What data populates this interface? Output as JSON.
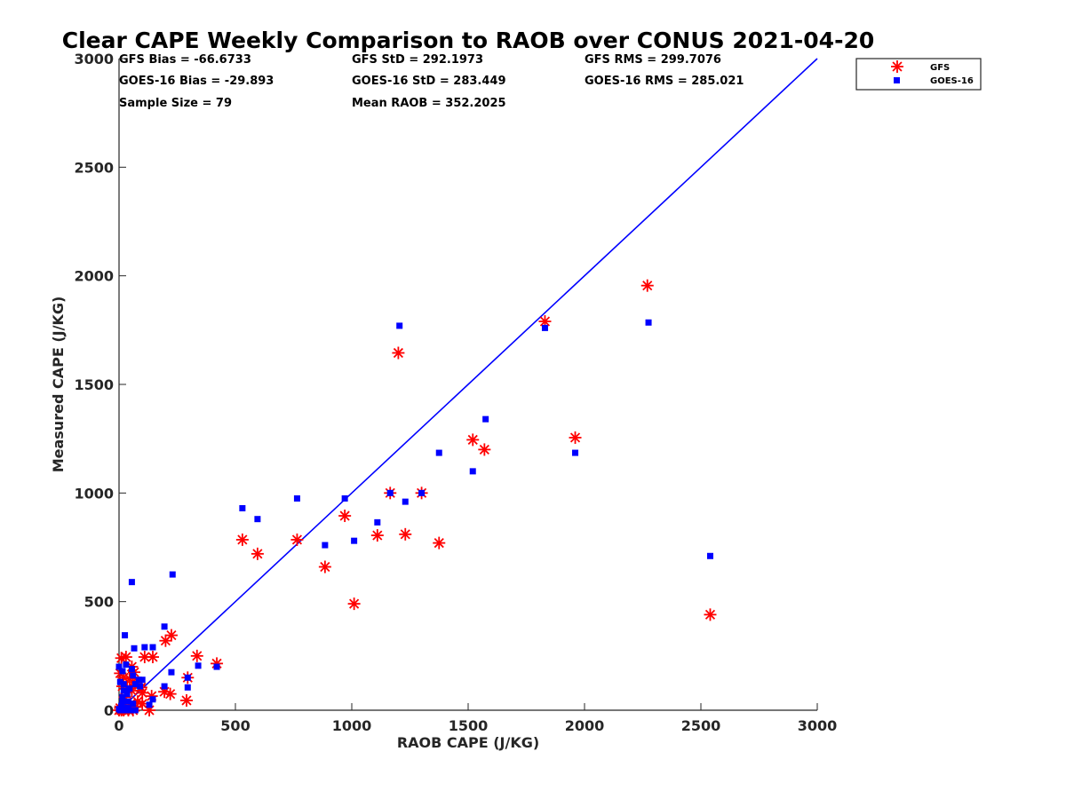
{
  "chart_data": {
    "type": "scatter",
    "title": "Clear CAPE Weekly Comparison to RAOB over CONUS 2021-04-20",
    "xlabel": "RAOB CAPE (J/KG)",
    "ylabel": "Measured CAPE (J/KG)",
    "xlim": [
      0,
      3000
    ],
    "ylim": [
      0,
      3000
    ],
    "xticks": [
      0,
      500,
      1000,
      1500,
      2000,
      2500,
      3000
    ],
    "yticks": [
      0,
      500,
      1000,
      1500,
      2000,
      2500,
      3000
    ],
    "xtick_labels": [
      "0",
      "500",
      "1000",
      "1500",
      "2000",
      "2500",
      "3000"
    ],
    "ytick_labels": [
      "0",
      "500",
      "1000",
      "1500",
      "2000",
      "2500",
      "3000"
    ],
    "legend_position": "top-right (outside axes)",
    "grid": false,
    "reference_line": {
      "name": "1:1 line",
      "x": [
        0,
        3000
      ],
      "y": [
        0,
        3000
      ],
      "color": "#0000ff"
    },
    "stats": [
      [
        "GFS Bias = -66.6733",
        "GFS StD = 292.1973",
        "GFS RMS = 299.7076"
      ],
      [
        "GOES-16 Bias = -29.893",
        "GOES-16 StD = 283.449",
        "GOES-16 RMS = 285.021"
      ],
      [
        "Sample Size = 79",
        "Mean RAOB = 352.2025",
        ""
      ]
    ],
    "series": [
      {
        "name": "GFS",
        "marker": "asterisk",
        "color": "#ff0000",
        "points": [
          [
            2270,
            1955
          ],
          [
            1830,
            1790
          ],
          [
            1200,
            1645
          ],
          [
            1960,
            1255
          ],
          [
            1520,
            1245
          ],
          [
            1570,
            1200
          ],
          [
            1165,
            1000
          ],
          [
            1300,
            1000
          ],
          [
            970,
            895
          ],
          [
            1230,
            810
          ],
          [
            1110,
            805
          ],
          [
            530,
            785
          ],
          [
            765,
            785
          ],
          [
            1375,
            770
          ],
          [
            595,
            720
          ],
          [
            885,
            660
          ],
          [
            1010,
            490
          ],
          [
            2540,
            440
          ],
          [
            225,
            345
          ],
          [
            200,
            320
          ],
          [
            335,
            250
          ],
          [
            110,
            245
          ],
          [
            145,
            245
          ],
          [
            420,
            215
          ],
          [
            295,
            150
          ],
          [
            290,
            45
          ],
          [
            10,
            240
          ],
          [
            30,
            245
          ],
          [
            5,
            170
          ],
          [
            20,
            150
          ],
          [
            45,
            145
          ],
          [
            55,
            200
          ],
          [
            65,
            175
          ],
          [
            60,
            130
          ],
          [
            85,
            115
          ],
          [
            95,
            105
          ],
          [
            100,
            80
          ],
          [
            195,
            85
          ],
          [
            220,
            75
          ],
          [
            140,
            65
          ],
          [
            80,
            40
          ],
          [
            100,
            30
          ],
          [
            45,
            20
          ],
          [
            30,
            10
          ],
          [
            15,
            5
          ],
          [
            5,
            10
          ],
          [
            0,
            0
          ],
          [
            10,
            0
          ],
          [
            20,
            0
          ],
          [
            40,
            0
          ],
          [
            60,
            0
          ],
          [
            130,
            0
          ],
          [
            50,
            30
          ],
          [
            70,
            15
          ],
          [
            25,
            60
          ],
          [
            15,
            110
          ],
          [
            35,
            100
          ],
          [
            55,
            90
          ]
        ]
      },
      {
        "name": "GOES-16",
        "marker": "square",
        "color": "#0000ff",
        "points": [
          [
            1205,
            1770
          ],
          [
            1830,
            1760
          ],
          [
            2275,
            1785
          ],
          [
            1575,
            1340
          ],
          [
            1375,
            1185
          ],
          [
            1960,
            1185
          ],
          [
            1520,
            1100
          ],
          [
            1165,
            1000
          ],
          [
            1300,
            1000
          ],
          [
            765,
            975
          ],
          [
            970,
            975
          ],
          [
            530,
            930
          ],
          [
            595,
            880
          ],
          [
            1230,
            960
          ],
          [
            1110,
            865
          ],
          [
            885,
            760
          ],
          [
            1010,
            780
          ],
          [
            2540,
            710
          ],
          [
            55,
            590
          ],
          [
            230,
            625
          ],
          [
            195,
            385
          ],
          [
            25,
            345
          ],
          [
            110,
            290
          ],
          [
            145,
            290
          ],
          [
            65,
            285
          ],
          [
            340,
            205
          ],
          [
            420,
            200
          ],
          [
            225,
            175
          ],
          [
            295,
            150
          ],
          [
            295,
            105
          ],
          [
            195,
            110
          ],
          [
            145,
            50
          ],
          [
            0,
            200
          ],
          [
            30,
            210
          ],
          [
            15,
            180
          ],
          [
            55,
            190
          ],
          [
            60,
            160
          ],
          [
            85,
            140
          ],
          [
            100,
            140
          ],
          [
            70,
            120
          ],
          [
            90,
            110
          ],
          [
            20,
            120
          ],
          [
            45,
            100
          ],
          [
            20,
            90
          ],
          [
            35,
            75
          ],
          [
            15,
            60
          ],
          [
            40,
            40
          ],
          [
            60,
            30
          ],
          [
            130,
            25
          ],
          [
            10,
            20
          ],
          [
            25,
            10
          ],
          [
            50,
            0
          ],
          [
            70,
            0
          ],
          [
            5,
            0
          ],
          [
            0,
            5
          ],
          [
            30,
            0
          ],
          [
            15,
            40
          ],
          [
            5,
            130
          ],
          [
            40,
            10
          ]
        ]
      }
    ]
  }
}
